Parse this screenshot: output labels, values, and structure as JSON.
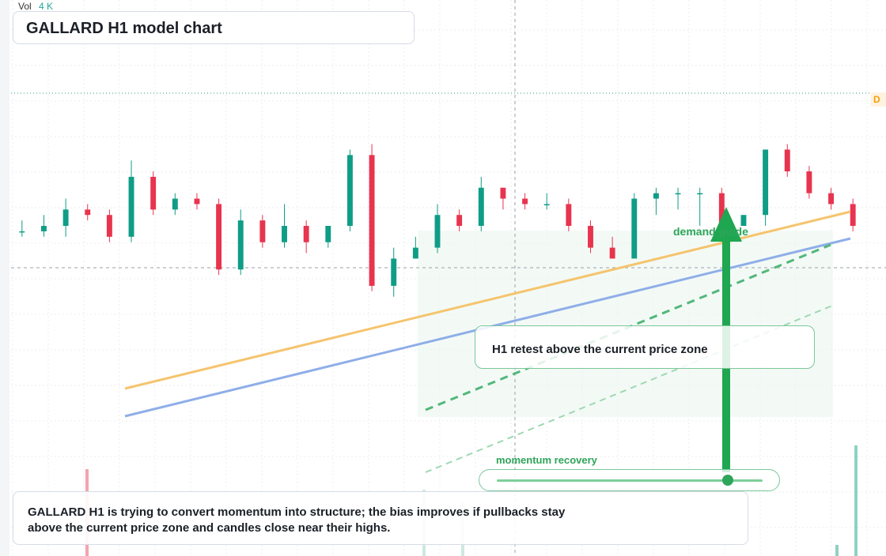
{
  "header": {
    "vol_label": "Vol",
    "vol_value": "4 K"
  },
  "title": "GALLARD H1 model chart",
  "badge": {
    "text": "D",
    "color": "#f59e0b"
  },
  "annotations": {
    "retest_callout": "H1 retest above the current price zone",
    "demand_label": "demand guide",
    "momentum_label": "momentum recovery",
    "momentum_level": 0.87
  },
  "caption": "GALLARD H1 is trying to convert momentum into structure; the bias improves if pullbacks stay above the current price zone and candles close near their highs.",
  "colors": {
    "up": "#0f9d86",
    "down": "#e8344e",
    "trend_orange": "#f5c46e",
    "trend_blue": "#8faee8",
    "accent_green": "#1fa651",
    "zone_fill": "#eaf6ee"
  },
  "chart_data": {
    "type": "candlestick",
    "title": "GALLARD H1 model chart",
    "ylim": [
      0,
      100
    ],
    "grid": true,
    "candles": [
      [
        59,
        59,
        61,
        58
      ],
      [
        59,
        60,
        62,
        58
      ],
      [
        60,
        63,
        65,
        58
      ],
      [
        63,
        62,
        64,
        61
      ],
      [
        62,
        58,
        63,
        57
      ],
      [
        58,
        69,
        72,
        57
      ],
      [
        69,
        63,
        70,
        62
      ],
      [
        63,
        65,
        66,
        62
      ],
      [
        65,
        64,
        66,
        63
      ],
      [
        64,
        52,
        65,
        51
      ],
      [
        52,
        61,
        63,
        51
      ],
      [
        61,
        57,
        62,
        56
      ],
      [
        57,
        60,
        64,
        56
      ],
      [
        60,
        57,
        61,
        55
      ],
      [
        57,
        60,
        60,
        56
      ],
      [
        60,
        73,
        74,
        59
      ],
      [
        73,
        49,
        75,
        48
      ],
      [
        49,
        54,
        56,
        47
      ],
      [
        54,
        56,
        58,
        54
      ],
      [
        56,
        62,
        64,
        55
      ],
      [
        62,
        60,
        63,
        59
      ],
      [
        60,
        67,
        69,
        59
      ],
      [
        67,
        65,
        67,
        63
      ],
      [
        65,
        64,
        66,
        63
      ],
      [
        64,
        64,
        66,
        63
      ],
      [
        64,
        60,
        65,
        59
      ],
      [
        60,
        56,
        61,
        55
      ],
      [
        56,
        54,
        58,
        55
      ],
      [
        54,
        65,
        66,
        60
      ],
      [
        65,
        66,
        67,
        62
      ],
      [
        66,
        66,
        67,
        63
      ],
      [
        66,
        66,
        67,
        60
      ],
      [
        66,
        60,
        67,
        60
      ],
      [
        60,
        62,
        62,
        60
      ],
      [
        62,
        74,
        74,
        60
      ],
      [
        74,
        70,
        75,
        69
      ],
      [
        70,
        66,
        71,
        65
      ],
      [
        66,
        64,
        67,
        63
      ],
      [
        64,
        60,
        65,
        59
      ]
    ]
  }
}
